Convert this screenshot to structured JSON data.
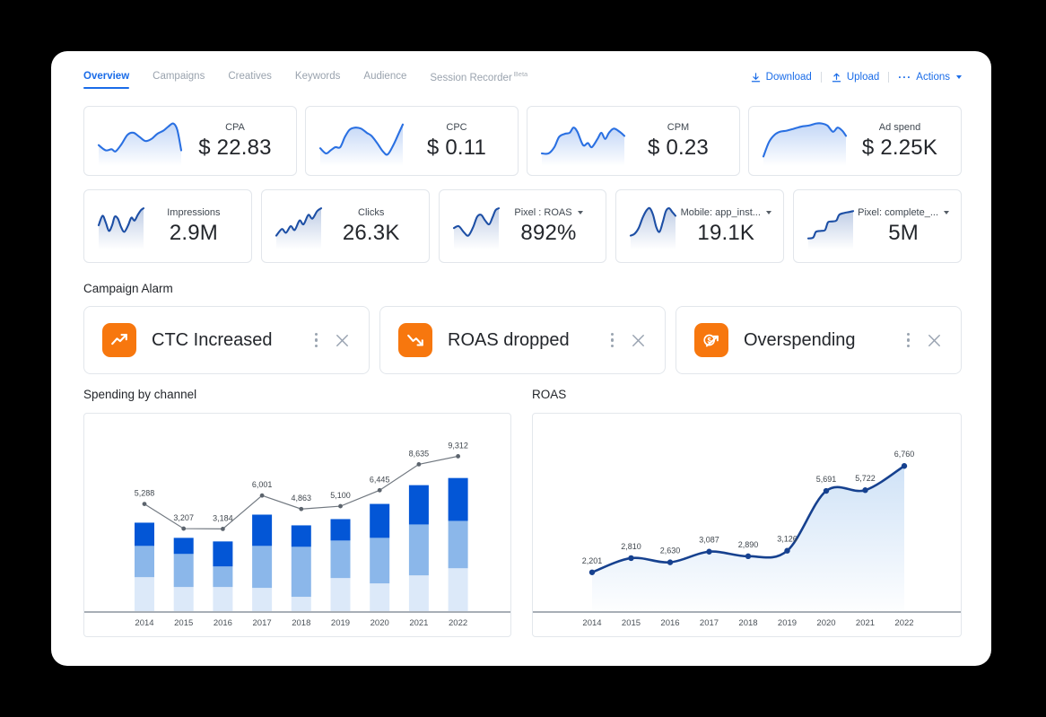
{
  "window": {
    "background": "#000000",
    "card_background": "#ffffff"
  },
  "tabs": [
    {
      "label": "Overview",
      "active": true
    },
    {
      "label": "Campaigns",
      "active": false
    },
    {
      "label": "Creatives",
      "active": false
    },
    {
      "label": "Keywords",
      "active": false
    },
    {
      "label": "Audience",
      "active": false
    },
    {
      "label": "Session Recorder",
      "badge": "Beta",
      "active": false
    }
  ],
  "toolbar": {
    "download": "Download",
    "upload": "Upload",
    "actions": "Actions"
  },
  "colors": {
    "accent_blue": "#1a6ce8",
    "spark_blue": "#2a70e2",
    "spark_navy": "#1d4fa5",
    "bar_dark": "#0356d6",
    "bar_medium": "#8bb7ea",
    "bar_light": "#dce9f9",
    "trend_gray": "#717880",
    "roas_navy": "#16418f",
    "alarm_orange": "#f7770e"
  },
  "kpi_row1": [
    {
      "label": "CPA",
      "value": "$ 22.83",
      "spark_color": "#2a70e2",
      "spark": [
        [
          0,
          25
        ],
        [
          7,
          30
        ],
        [
          13,
          29
        ],
        [
          17,
          31
        ],
        [
          23,
          24
        ],
        [
          29,
          15
        ],
        [
          35,
          13
        ],
        [
          41,
          17
        ],
        [
          47,
          21
        ],
        [
          53,
          19
        ],
        [
          59,
          14
        ],
        [
          65,
          11
        ],
        [
          70,
          7
        ],
        [
          75,
          4
        ],
        [
          79,
          10
        ],
        [
          83,
          30
        ]
      ]
    },
    {
      "label": "CPC",
      "value": "$ 0.11",
      "spark_color": "#2a70e2",
      "spark": [
        [
          0,
          28
        ],
        [
          6,
          33
        ],
        [
          11,
          30
        ],
        [
          16,
          27
        ],
        [
          21,
          27
        ],
        [
          26,
          17
        ],
        [
          31,
          10
        ],
        [
          37,
          8
        ],
        [
          43,
          9
        ],
        [
          49,
          13
        ],
        [
          54,
          16
        ],
        [
          60,
          23
        ],
        [
          66,
          31
        ],
        [
          71,
          34
        ],
        [
          77,
          25
        ],
        [
          83,
          13
        ],
        [
          87,
          5
        ]
      ]
    },
    {
      "label": "CPM",
      "value": "$ 0.23",
      "spark_color": "#2a70e2",
      "spark": [
        [
          0,
          33
        ],
        [
          7,
          33
        ],
        [
          13,
          27
        ],
        [
          18,
          17
        ],
        [
          24,
          14
        ],
        [
          29,
          13
        ],
        [
          33,
          8
        ],
        [
          37,
          12
        ],
        [
          43,
          25
        ],
        [
          48,
          23
        ],
        [
          52,
          27
        ],
        [
          58,
          19
        ],
        [
          62,
          13
        ],
        [
          66,
          19
        ],
        [
          70,
          13
        ],
        [
          75,
          9
        ],
        [
          81,
          12
        ],
        [
          86,
          16
        ]
      ]
    },
    {
      "label": "Ad spend",
      "value": "$ 2.25K",
      "spark_color": "#2a70e2",
      "spark": [
        [
          0,
          36
        ],
        [
          6,
          22
        ],
        [
          12,
          15
        ],
        [
          18,
          12
        ],
        [
          25,
          11
        ],
        [
          33,
          9
        ],
        [
          41,
          7
        ],
        [
          49,
          6
        ],
        [
          57,
          4
        ],
        [
          63,
          4
        ],
        [
          69,
          6
        ],
        [
          75,
          12
        ],
        [
          80,
          8
        ],
        [
          85,
          11
        ],
        [
          89,
          16
        ]
      ]
    }
  ],
  "kpi_row2": [
    {
      "label": "Impressions",
      "value": "2.9M",
      "dropdown": false,
      "spark_color": "#1d4fa5",
      "spark": [
        [
          0,
          20
        ],
        [
          6,
          10
        ],
        [
          11,
          17
        ],
        [
          16,
          26
        ],
        [
          21,
          20
        ],
        [
          25,
          11
        ],
        [
          30,
          13
        ],
        [
          35,
          22
        ],
        [
          40,
          27
        ],
        [
          46,
          20
        ],
        [
          51,
          12
        ],
        [
          56,
          15
        ],
        [
          61,
          9
        ],
        [
          66,
          4
        ],
        [
          70,
          2
        ]
      ]
    },
    {
      "label": "Clicks",
      "value": "26.3K",
      "dropdown": false,
      "spark_color": "#1d4fa5",
      "spark": [
        [
          0,
          31
        ],
        [
          7,
          24
        ],
        [
          12,
          28
        ],
        [
          18,
          21
        ],
        [
          23,
          25
        ],
        [
          29,
          15
        ],
        [
          34,
          19
        ],
        [
          40,
          9
        ],
        [
          45,
          13
        ],
        [
          51,
          5
        ],
        [
          56,
          2
        ]
      ]
    },
    {
      "label": "Pixel : ROAS",
      "value": "892%",
      "dropdown": true,
      "spark_color": "#1d4fa5",
      "spark": [
        [
          0,
          23
        ],
        [
          6,
          21
        ],
        [
          12,
          27
        ],
        [
          18,
          31
        ],
        [
          24,
          22
        ],
        [
          29,
          11
        ],
        [
          34,
          9
        ],
        [
          39,
          15
        ],
        [
          44,
          19
        ],
        [
          48,
          12
        ],
        [
          52,
          4
        ],
        [
          56,
          2
        ]
      ]
    },
    {
      "label": "Mobile: app_inst...",
      "value": "19.1K",
      "dropdown": true,
      "spark_color": "#1d4fa5",
      "spark": [
        [
          0,
          31
        ],
        [
          5,
          29
        ],
        [
          10,
          23
        ],
        [
          15,
          12
        ],
        [
          20,
          4
        ],
        [
          24,
          2
        ],
        [
          28,
          9
        ],
        [
          32,
          22
        ],
        [
          36,
          27
        ],
        [
          40,
          17
        ],
        [
          44,
          5
        ],
        [
          48,
          2
        ],
        [
          52,
          6
        ],
        [
          56,
          10
        ]
      ]
    },
    {
      "label": "Pixel: complete_...",
      "value": "5M",
      "dropdown": true,
      "spark_color": "#1d4fa5",
      "spark": [
        [
          0,
          34
        ],
        [
          7,
          33
        ],
        [
          11,
          27
        ],
        [
          18,
          26
        ],
        [
          24,
          25
        ],
        [
          28,
          17
        ],
        [
          33,
          16
        ],
        [
          40,
          15
        ],
        [
          44,
          9
        ],
        [
          51,
          7
        ],
        [
          58,
          6
        ],
        [
          64,
          5
        ]
      ]
    }
  ],
  "campaign_alarm": {
    "title": "Campaign Alarm",
    "alarms": [
      {
        "label": "CTC Increased",
        "icon": "trend-up"
      },
      {
        "label": "ROAS dropped",
        "icon": "trend-down"
      },
      {
        "label": "Overspending",
        "icon": "dollar-trend"
      }
    ]
  },
  "chart_titles": {
    "spending": "Spending by channel",
    "roas": "ROAS"
  },
  "chart_data": [
    {
      "type": "bar",
      "title": "Spending by channel",
      "categories": [
        "2014",
        "2015",
        "2016",
        "2017",
        "2018",
        "2019",
        "2020",
        "2021",
        "2022"
      ],
      "stacked": true,
      "series": [
        {
          "name": "channel-bottom-light",
          "color": "#dce9f9",
          "values": [
            2340,
            1680,
            1680,
            1620,
            1020,
            2280,
            1920,
            2460,
            2940
          ]
        },
        {
          "name": "channel-middle-medium",
          "color": "#8bb7ea",
          "values": [
            2100,
            2220,
            1380,
            2820,
            3360,
            2520,
            3060,
            3420,
            3180
          ]
        },
        {
          "name": "channel-top-dark",
          "color": "#0356d6",
          "values": [
            1560,
            1080,
            1680,
            2100,
            1440,
            1440,
            2280,
            2640,
            2880
          ]
        }
      ],
      "line_series": {
        "name": "total-trend",
        "color": "#717880",
        "values": [
          5288,
          3207,
          3184,
          6001,
          4863,
          5100,
          6445,
          8635,
          9312
        ]
      },
      "bar_ylim": [
        0,
        13320
      ],
      "line_ylim": [
        -3828,
        12905
      ],
      "grid": false,
      "legend": "none"
    },
    {
      "type": "line",
      "title": "ROAS",
      "categories": [
        "2014",
        "2015",
        "2016",
        "2017",
        "2018",
        "2019",
        "2020",
        "2021",
        "2022"
      ],
      "values": [
        2201,
        2810,
        2630,
        3087,
        2890,
        3126,
        5691,
        5722,
        6760
      ],
      "color": "#16418f",
      "area": true,
      "ylim": [
        500,
        9000
      ],
      "grid": false,
      "legend": "none"
    }
  ]
}
